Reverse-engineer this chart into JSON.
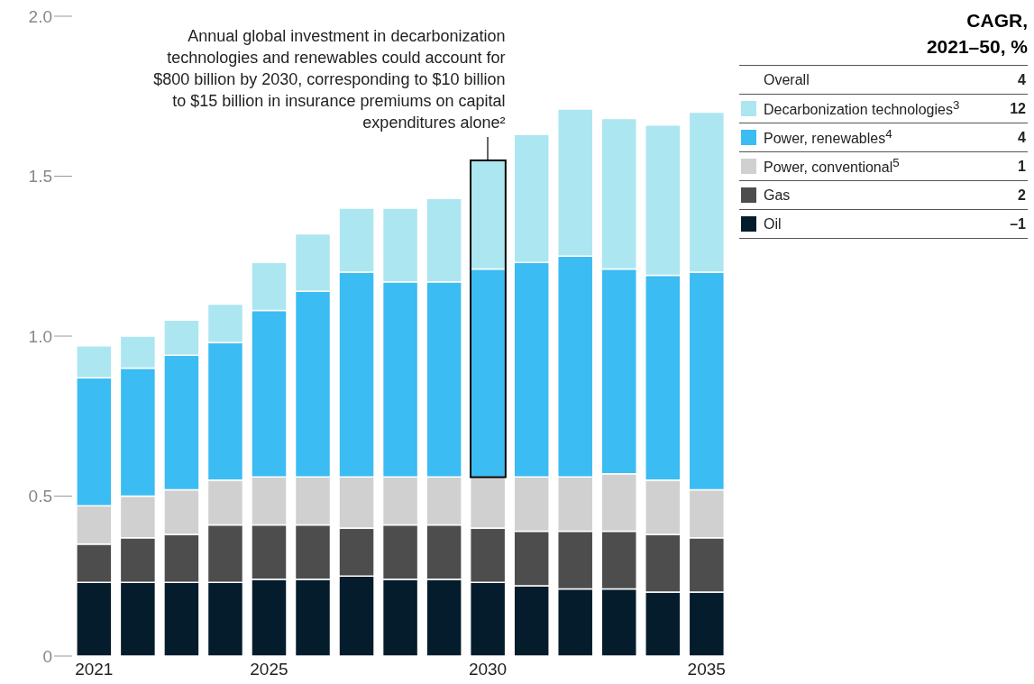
{
  "chart_data": {
    "type": "bar",
    "stacked": true,
    "categories": [
      "2021",
      null,
      null,
      null,
      "2025",
      null,
      null,
      null,
      null,
      "2030",
      null,
      null,
      null,
      null,
      "2035"
    ],
    "series": [
      {
        "name": "Oil",
        "color": "#051c2c",
        "values": [
          0.23,
          0.23,
          0.23,
          0.23,
          0.24,
          0.24,
          0.25,
          0.24,
          0.24,
          0.23,
          0.22,
          0.21,
          0.21,
          0.2,
          0.2
        ]
      },
      {
        "name": "Gas",
        "color": "#4d4d4d",
        "values": [
          0.12,
          0.14,
          0.15,
          0.18,
          0.17,
          0.17,
          0.15,
          0.17,
          0.17,
          0.17,
          0.17,
          0.18,
          0.18,
          0.18,
          0.17
        ]
      },
      {
        "name": "Power, conventional$^{5}$",
        "color": "#d0d0d0",
        "values": [
          0.12,
          0.13,
          0.14,
          0.14,
          0.15,
          0.15,
          0.16,
          0.15,
          0.15,
          0.16,
          0.17,
          0.17,
          0.18,
          0.17,
          0.15
        ]
      },
      {
        "name": "Power, renewables$^{4}$",
        "color": "#3bbcf2",
        "values": [
          0.4,
          0.4,
          0.42,
          0.43,
          0.52,
          0.58,
          0.64,
          0.61,
          0.61,
          0.65,
          0.67,
          0.69,
          0.64,
          0.64,
          0.68
        ]
      },
      {
        "name": "Decarbonization technologies$^{3}$",
        "color": "#ace6f0",
        "values": [
          0.1,
          0.1,
          0.11,
          0.12,
          0.15,
          0.18,
          0.2,
          0.23,
          0.26,
          0.34,
          0.4,
          0.46,
          0.47,
          0.47,
          0.5
        ]
      }
    ],
    "ylim": [
      0,
      2
    ],
    "yticks": [
      0,
      0.5,
      {
        "value": 1,
        "label": "1.0"
      },
      1.5,
      {
        "value": 2,
        "label": "2.0"
      }
    ],
    "grid": false,
    "legend": "right",
    "annotations": [
      {
        "text": "Annual global investment in decarbonization technologies and renewables could account for $800 billion by 2030, corresponding to $10 billion to $15 billion in insurance premiums on capital expenditures alone²",
        "x": "2030",
        "y": 1.55
      },
      "CAGR, 2021–50, %",
      "Overall",
      "4",
      "12",
      "4",
      "1",
      "2",
      "–1"
    ]
  }
}
